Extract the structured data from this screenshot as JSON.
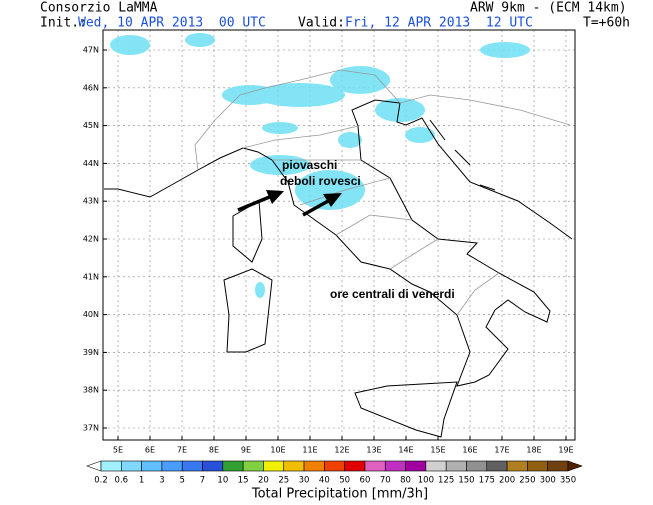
{
  "header": {
    "agency": "Consorzio LaMMA",
    "model": "ARW 9km - (ECM 14km)",
    "init_label": "Init.:",
    "init": "Wed, 10 APR 2013  00 UTC",
    "valid_label": "Valid:",
    "valid": "Fri, 12 APR 2013  12 UTC",
    "lead": "T=+60h"
  },
  "map": {
    "lat_labels": [
      "47N",
      "46N",
      "45N",
      "44N",
      "43N",
      "42N",
      "41N",
      "40N",
      "39N",
      "38N",
      "37N"
    ],
    "lon_labels": [
      "5E",
      "6E",
      "7E",
      "8E",
      "9E",
      "10E",
      "11E",
      "12E",
      "13E",
      "14E",
      "15E",
      "16E",
      "17E",
      "18E",
      "19E"
    ],
    "annotations": [
      "piovaschi",
      "deboli rovesci",
      "ore centrali di venerdi"
    ]
  },
  "colorbar": {
    "labels": [
      "0.2",
      "0.6",
      "1",
      "3",
      "5",
      "7",
      "10",
      "15",
      "20",
      "25",
      "30",
      "40",
      "50",
      "60",
      "70",
      "80",
      "100",
      "125",
      "150",
      "175",
      "200",
      "250",
      "300",
      "350"
    ],
    "colors": [
      "#ffffff",
      "#a0f0ff",
      "#80d8ff",
      "#60c0ff",
      "#4a9cff",
      "#3a78f0",
      "#2850d8",
      "#30a030",
      "#80d040",
      "#f0f000",
      "#f0c000",
      "#f08000",
      "#f04000",
      "#e00000",
      "#e060c0",
      "#c030c0",
      "#a000a0",
      "#d0d0d0",
      "#b0b0b0",
      "#909090",
      "#606060",
      "#b08020",
      "#906010",
      "#704010",
      "#502000"
    ],
    "title": "Total Precipitation [mm/3h]"
  }
}
